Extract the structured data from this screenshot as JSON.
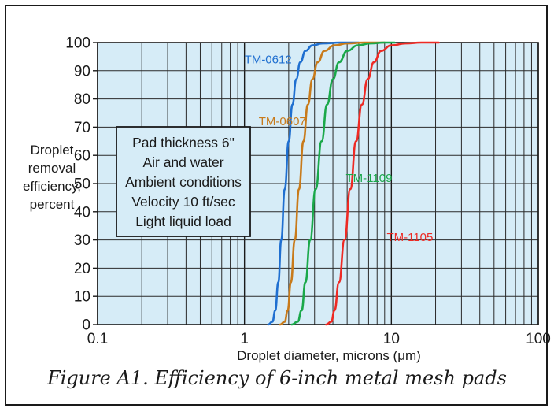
{
  "chart_data": {
    "type": "line",
    "title": "",
    "xlabel": "Droplet diameter, microns (μm)",
    "ylabel": [
      "Droplet",
      "removal",
      "efficiency,",
      "percent"
    ],
    "x_scale": "log",
    "xlim": [
      0.1,
      100
    ],
    "ylim": [
      0,
      100
    ],
    "x_ticks": [
      0.1,
      1,
      10,
      100
    ],
    "x_tick_labels": [
      "0.1",
      "1",
      "10",
      "100"
    ],
    "y_ticks": [
      0,
      10,
      20,
      30,
      40,
      50,
      60,
      70,
      80,
      90,
      100
    ],
    "y_tick_labels": [
      "0",
      "10",
      "20",
      "30",
      "40",
      "50",
      "60",
      "70",
      "80",
      "90",
      "100"
    ],
    "grid": true,
    "background": "#d6ecf7",
    "annotation": [
      "Pad thickness 6\"",
      "Air and water",
      "Ambient conditions",
      "Velocity 10 ft/sec",
      "Light liquid load"
    ],
    "series": [
      {
        "name": "TM-0612",
        "color": "#1f6fd0",
        "x": [
          1.45,
          1.55,
          1.62,
          1.7,
          1.78,
          1.88,
          2.0,
          2.12,
          2.25,
          2.4,
          2.6,
          2.9,
          3.4,
          4.5,
          6
        ],
        "y": [
          0,
          1,
          5,
          15,
          30,
          48,
          65,
          78,
          87,
          93,
          97,
          99,
          99.7,
          100,
          100
        ]
      },
      {
        "name": "TM-0607",
        "color": "#c87a1a",
        "x": [
          1.75,
          1.88,
          1.97,
          2.07,
          2.2,
          2.35,
          2.52,
          2.7,
          2.9,
          3.15,
          3.5,
          4.1,
          5.0,
          6.5,
          9
        ],
        "y": [
          0,
          1,
          5,
          15,
          30,
          48,
          65,
          78,
          87,
          93,
          97,
          99,
          99.7,
          100,
          100
        ]
      },
      {
        "name": "TM-1109",
        "color": "#1aa84a",
        "x": [
          2.1,
          2.3,
          2.45,
          2.6,
          2.8,
          3.05,
          3.35,
          3.65,
          4.0,
          4.4,
          5.0,
          5.9,
          7.2,
          9.0,
          10.5
        ],
        "y": [
          0,
          1,
          5,
          15,
          30,
          48,
          65,
          78,
          87,
          93,
          97,
          99,
          99.7,
          100,
          100
        ]
      },
      {
        "name": "TM-1105",
        "color": "#ee2a24",
        "x": [
          3.6,
          3.9,
          4.1,
          4.4,
          4.8,
          5.25,
          5.75,
          6.3,
          6.9,
          7.6,
          8.5,
          10,
          12.5,
          16,
          21
        ],
        "y": [
          0,
          1,
          5,
          15,
          30,
          48,
          65,
          78,
          87,
          93,
          97,
          99,
          99.7,
          100,
          100
        ]
      }
    ],
    "series_labels": [
      {
        "name": "TM-0612",
        "x": 1.0,
        "y": 94
      },
      {
        "name": "TM-0607",
        "x": 1.25,
        "y": 72
      },
      {
        "name": "TM-1109",
        "x": 4.9,
        "y": 52
      },
      {
        "name": "TM-1105",
        "x": 9.3,
        "y": 31
      }
    ],
    "caption": "Figure A1.  Efficiency of 6-inch metal mesh pads"
  }
}
